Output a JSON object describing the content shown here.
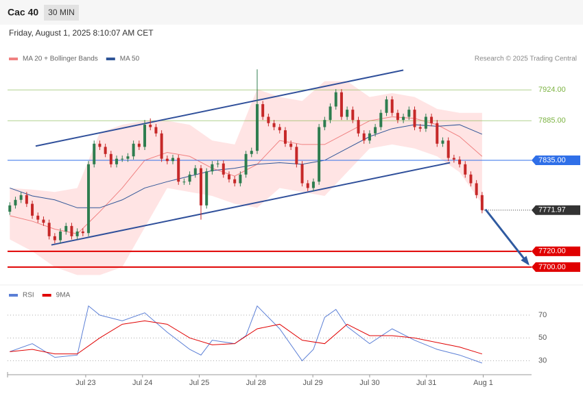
{
  "header": {
    "title": "Cac 40",
    "interval": "30 MIN",
    "date": "Friday, August 1, 2025 8:10:07 AM CET"
  },
  "chart_data": {
    "type": "candlestick",
    "legend": [
      {
        "name": "MA 20 + Bollinger Bands",
        "color": "#f08080"
      },
      {
        "name": "MA 50",
        "color": "#2f5597"
      }
    ],
    "credit": "Research © 2025 Trading Central",
    "xlim": [
      -0.4,
      92.8
    ],
    "ylim": [
      7680,
      7958
    ],
    "xticks": [
      {
        "value": 13.5,
        "label": "Jul 23"
      },
      {
        "value": 23.6,
        "label": "Jul 24"
      },
      {
        "value": 33.7,
        "label": "Jul 25"
      },
      {
        "value": 43.8,
        "label": "Jul 28"
      },
      {
        "value": 53.9,
        "label": "Jul 29"
      },
      {
        "value": 64,
        "label": "Jul 30"
      },
      {
        "value": 74.1,
        "label": "Jul 31"
      },
      {
        "value": 84.2,
        "label": "Aug 1"
      }
    ],
    "up_color": "#2e7d4f",
    "down_color": "#c62828",
    "candles": [
      [
        7770,
        7782,
        7766,
        7778
      ],
      [
        7778,
        7789,
        7774,
        7785
      ],
      [
        7785,
        7795,
        7781,
        7791
      ],
      [
        7791,
        7795,
        7776,
        7780
      ],
      [
        7780,
        7784,
        7761,
        7765
      ],
      [
        7765,
        7769,
        7756,
        7760
      ],
      [
        7760,
        7764,
        7752,
        7756
      ],
      [
        7756,
        7760,
        7735,
        7739
      ],
      [
        7739,
        7743,
        7730,
        7734
      ],
      [
        7734,
        7749,
        7730,
        7745
      ],
      [
        7745,
        7756,
        7741,
        7752
      ],
      [
        7752,
        7756,
        7735,
        7739
      ],
      [
        7739,
        7749,
        7735,
        7745
      ],
      [
        7745,
        7749,
        7739,
        7743
      ],
      [
        7743,
        7834,
        7739,
        7830
      ],
      [
        7830,
        7860,
        7826,
        7856
      ],
      [
        7856,
        7860,
        7848,
        7852
      ],
      [
        7852,
        7856,
        7839,
        7843
      ],
      [
        7843,
        7847,
        7826,
        7830
      ],
      [
        7830,
        7841,
        7826,
        7837
      ],
      [
        7837,
        7841,
        7833,
        7837
      ],
      [
        7837,
        7844,
        7833,
        7840
      ],
      [
        7840,
        7860,
        7836,
        7856
      ],
      [
        7856,
        7860,
        7848,
        7852
      ],
      [
        7852,
        7886,
        7848,
        7880
      ],
      [
        7880,
        7888,
        7873,
        7877
      ],
      [
        7877,
        7881,
        7865,
        7869
      ],
      [
        7869,
        7873,
        7833,
        7837
      ],
      [
        7837,
        7841,
        7830,
        7834
      ],
      [
        7834,
        7842,
        7830,
        7838
      ],
      [
        7838,
        7842,
        7804,
        7808
      ],
      [
        7808,
        7812,
        7804,
        7808
      ],
      [
        7808,
        7821,
        7804,
        7817
      ],
      [
        7817,
        7829,
        7813,
        7825
      ],
      [
        7825,
        7829,
        7760,
        7778
      ],
      [
        7778,
        7825,
        7774,
        7821
      ],
      [
        7821,
        7834,
        7817,
        7830
      ],
      [
        7830,
        7835,
        7826,
        7831
      ],
      [
        7831,
        7835,
        7813,
        7817
      ],
      [
        7817,
        7821,
        7807,
        7811
      ],
      [
        7811,
        7815,
        7802,
        7806
      ],
      [
        7806,
        7821,
        7802,
        7817
      ],
      [
        7817,
        7847,
        7813,
        7843
      ],
      [
        7843,
        7851,
        7839,
        7847
      ],
      [
        7847,
        7950,
        7843,
        7906
      ],
      [
        7906,
        7910,
        7886,
        7890
      ],
      [
        7890,
        7894,
        7878,
        7882
      ],
      [
        7882,
        7886,
        7873,
        7877
      ],
      [
        7877,
        7881,
        7869,
        7873
      ],
      [
        7873,
        7877,
        7852,
        7856
      ],
      [
        7856,
        7860,
        7848,
        7852
      ],
      [
        7852,
        7856,
        7826,
        7830
      ],
      [
        7830,
        7834,
        7802,
        7806
      ],
      [
        7806,
        7810,
        7796,
        7800
      ],
      [
        7800,
        7812,
        7796,
        7808
      ],
      [
        7808,
        7881,
        7804,
        7877
      ],
      [
        7877,
        7890,
        7873,
        7886
      ],
      [
        7886,
        7907,
        7882,
        7903
      ],
      [
        7903,
        7925,
        7899,
        7921
      ],
      [
        7921,
        7925,
        7886,
        7890
      ],
      [
        7890,
        7903,
        7886,
        7899
      ],
      [
        7899,
        7903,
        7882,
        7886
      ],
      [
        7886,
        7890,
        7865,
        7869
      ],
      [
        7869,
        7873,
        7856,
        7860
      ],
      [
        7860,
        7873,
        7856,
        7869
      ],
      [
        7869,
        7881,
        7865,
        7877
      ],
      [
        7877,
        7899,
        7873,
        7895
      ],
      [
        7895,
        7916,
        7891,
        7912
      ],
      [
        7912,
        7916,
        7891,
        7895
      ],
      [
        7895,
        7899,
        7882,
        7886
      ],
      [
        7886,
        7894,
        7882,
        7890
      ],
      [
        7890,
        7903,
        7886,
        7899
      ],
      [
        7899,
        7903,
        7873,
        7877
      ],
      [
        7877,
        7881,
        7871,
        7875
      ],
      [
        7875,
        7894,
        7871,
        7890
      ],
      [
        7890,
        7894,
        7878,
        7882
      ],
      [
        7882,
        7886,
        7852,
        7856
      ],
      [
        7856,
        7864,
        7852,
        7860
      ],
      [
        7860,
        7864,
        7834,
        7838
      ],
      [
        7838,
        7842,
        7832,
        7836
      ],
      [
        7836,
        7840,
        7826,
        7830
      ],
      [
        7830,
        7834,
        7813,
        7817
      ],
      [
        7817,
        7821,
        7802,
        7806
      ],
      [
        7806,
        7810,
        7787,
        7791
      ],
      [
        7791,
        7795,
        7768,
        7772
      ]
    ],
    "line_x": [
      0,
      4,
      8,
      12,
      16,
      20,
      24,
      28,
      32,
      36,
      40,
      44,
      48,
      52,
      56,
      60,
      64,
      68,
      72,
      76,
      80,
      84
    ],
    "bollinger": {
      "upper": [
        7800,
        7798,
        7795,
        7800,
        7870,
        7880,
        7885,
        7885,
        7880,
        7860,
        7855,
        7925,
        7915,
        7910,
        7935,
        7935,
        7915,
        7920,
        7915,
        7900,
        7895,
        7895
      ],
      "lower": [
        7735,
        7720,
        7700,
        7690,
        7690,
        7700,
        7750,
        7800,
        7795,
        7790,
        7780,
        7775,
        7800,
        7795,
        7790,
        7820,
        7850,
        7855,
        7850,
        7840,
        7820,
        7780
      ]
    },
    "ma20": [
      7765,
      7758,
      7748,
      7742,
      7770,
      7800,
      7835,
      7845,
      7840,
      7825,
      7815,
      7830,
      7860,
      7855,
      7855,
      7870,
      7885,
      7890,
      7888,
      7880,
      7865,
      7840
    ],
    "ma50": [
      7800,
      7790,
      7785,
      7775,
      7775,
      7785,
      7800,
      7808,
      7815,
      7822,
      7825,
      7830,
      7832,
      7830,
      7835,
      7850,
      7865,
      7875,
      7880,
      7878,
      7880,
      7868
    ],
    "trendlines": [
      {
        "x": [
          4.6,
          70
        ],
        "y": [
          7853,
          7949
        ]
      },
      {
        "x": [
          7.4,
          78.3
        ],
        "y": [
          7728,
          7832
        ]
      }
    ],
    "arrow": {
      "x": [
        84.6,
        92.2
      ],
      "y": [
        7773,
        7704
      ]
    },
    "levels": [
      {
        "price": 7924,
        "label": "7924.00",
        "color": "#7cb342",
        "style": "text"
      },
      {
        "price": 7885,
        "label": "7885.00",
        "color": "#7cb342",
        "style": "text"
      },
      {
        "price": 7835,
        "label": "7835.00",
        "color": "#2f6fe8",
        "style": "tag"
      },
      {
        "price": 7720,
        "label": "7720.00",
        "color": "#e00000",
        "style": "tag"
      },
      {
        "price": 7700,
        "label": "7700.00",
        "color": "#e00000",
        "style": "tag"
      },
      {
        "price": 7771.97,
        "color": "#333333",
        "style": "last"
      }
    ],
    "rsi": {
      "legend": [
        {
          "name": "RSI",
          "color": "#5b7fd6"
        },
        {
          "name": "9MA",
          "color": "#e00000"
        }
      ],
      "ylim": [
        19,
        79
      ],
      "yticks": [
        70,
        50,
        30
      ],
      "x": [
        0,
        4,
        8,
        12,
        14,
        16,
        20,
        24,
        28,
        32,
        34,
        36,
        40,
        42,
        44,
        48,
        52,
        54,
        56,
        58,
        60,
        64,
        68,
        72,
        76,
        80,
        84
      ],
      "rsi": [
        38,
        45,
        33,
        35,
        78,
        70,
        65,
        72,
        55,
        40,
        35,
        48,
        45,
        52,
        78,
        58,
        30,
        40,
        68,
        75,
        60,
        45,
        58,
        48,
        40,
        35,
        28
      ],
      "ma_x": [
        0,
        4,
        8,
        12,
        16,
        20,
        24,
        28,
        32,
        36,
        40,
        44,
        48,
        52,
        56,
        60,
        64,
        68,
        72,
        76,
        80,
        84
      ],
      "ma": [
        38,
        40,
        36,
        36,
        50,
        62,
        65,
        62,
        50,
        44,
        45,
        58,
        62,
        48,
        45,
        62,
        52,
        52,
        50,
        46,
        42,
        36
      ]
    }
  }
}
